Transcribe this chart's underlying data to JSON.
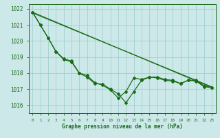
{
  "xlabel": "Graphe pression niveau de la mer (hPa)",
  "xlim": [
    -0.5,
    23.5
  ],
  "ylim": [
    1015.5,
    1022.3
  ],
  "yticks": [
    1016,
    1017,
    1018,
    1019,
    1020,
    1021,
    1022
  ],
  "xticks": [
    0,
    1,
    2,
    3,
    4,
    5,
    6,
    7,
    8,
    9,
    10,
    11,
    12,
    13,
    14,
    15,
    16,
    17,
    18,
    19,
    20,
    21,
    22,
    23
  ],
  "bg_color": "#cce8e8",
  "grid_color": "#99cccc",
  "line_color": "#1a6b1a",
  "lines": [
    {
      "x": [
        0,
        1,
        2,
        3,
        4,
        5,
        6,
        7,
        8,
        9,
        10,
        11,
        12,
        13,
        14,
        15,
        16,
        17,
        18,
        19,
        20,
        21,
        22,
        23
      ],
      "y": [
        1021.8,
        1021.0,
        1020.2,
        1019.35,
        1018.9,
        1018.75,
        1018.0,
        1017.75,
        1017.35,
        1017.3,
        1017.0,
        1016.7,
        1016.15,
        1016.85,
        1017.55,
        1017.75,
        1017.75,
        1017.6,
        1017.55,
        1017.35,
        1017.55,
        1017.55,
        1017.2,
        1017.1
      ],
      "markers": true,
      "lw": 0.9
    },
    {
      "x": [
        0,
        1,
        2,
        3,
        4,
        5,
        6,
        7,
        8,
        9,
        10,
        11,
        12,
        13,
        14,
        15,
        16,
        17,
        18,
        19,
        20,
        21,
        22,
        23
      ],
      "y": [
        1021.8,
        1021.0,
        1020.2,
        1019.35,
        1018.85,
        1018.7,
        1018.0,
        1017.85,
        1017.4,
        1017.25,
        1016.95,
        1016.45,
        1016.85,
        1017.7,
        1017.6,
        1017.75,
        1017.7,
        1017.55,
        1017.5,
        1017.35,
        1017.55,
        1017.5,
        1017.15,
        1017.1
      ],
      "markers": true,
      "lw": 0.9
    },
    {
      "x": [
        0,
        23
      ],
      "y": [
        1021.8,
        1017.1
      ],
      "markers": false,
      "lw": 0.8
    },
    {
      "x": [
        0,
        23
      ],
      "y": [
        1021.75,
        1017.15
      ],
      "markers": false,
      "lw": 0.8
    }
  ]
}
